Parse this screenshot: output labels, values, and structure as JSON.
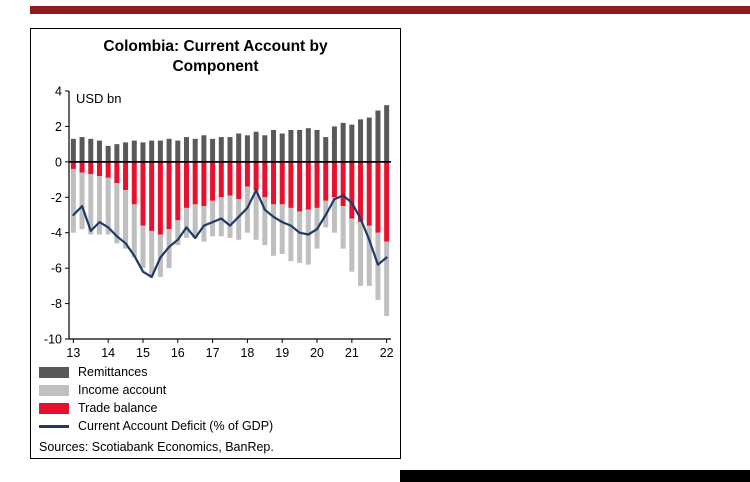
{
  "colors": {
    "top_rule": "#8E1A1C",
    "bottom_bar": "#000000",
    "axis": "#000000",
    "remittances": "#595959",
    "income_account": "#BFBFBF",
    "trade_balance": "#E8112D",
    "deficit_line": "#1F3A68"
  },
  "footer": {
    "sources": "Sources: Scotiabank Economics, BanRep."
  },
  "chart_data": {
    "type": "bar",
    "title": "Colombia: Current Account by Component",
    "unit_label": "USD bn",
    "ylabel": "USD bn",
    "xlabel": "",
    "ylim": [
      -10,
      4
    ],
    "yticks": [
      4,
      2,
      0,
      -2,
      -4,
      -6,
      -8,
      -10
    ],
    "x_tick_labels": [
      "13",
      "14",
      "15",
      "16",
      "17",
      "18",
      "19",
      "20",
      "21",
      "22"
    ],
    "x": [
      "13Q1",
      "13Q2",
      "13Q3",
      "13Q4",
      "14Q1",
      "14Q2",
      "14Q3",
      "14Q4",
      "15Q1",
      "15Q2",
      "15Q3",
      "15Q4",
      "16Q1",
      "16Q2",
      "16Q3",
      "16Q4",
      "17Q1",
      "17Q2",
      "17Q3",
      "17Q4",
      "18Q1",
      "18Q2",
      "18Q3",
      "18Q4",
      "19Q1",
      "19Q2",
      "19Q3",
      "19Q4",
      "20Q1",
      "20Q2",
      "20Q3",
      "20Q4",
      "21Q1",
      "21Q2",
      "21Q3",
      "21Q4",
      "22Q1"
    ],
    "legend_position": "bottom-left",
    "grid": false,
    "series": [
      {
        "name": "Remittances",
        "type": "bar",
        "stack": "positive",
        "color": "#595959",
        "values": [
          1.3,
          1.4,
          1.3,
          1.2,
          0.9,
          1.0,
          1.1,
          1.2,
          1.1,
          1.2,
          1.2,
          1.3,
          1.2,
          1.4,
          1.3,
          1.5,
          1.3,
          1.4,
          1.4,
          1.6,
          1.5,
          1.7,
          1.5,
          1.8,
          1.6,
          1.8,
          1.8,
          1.9,
          1.8,
          1.4,
          2.0,
          2.2,
          2.1,
          2.4,
          2.5,
          2.9,
          3.2
        ]
      },
      {
        "name": "Income account",
        "type": "bar",
        "stack": "negative-outer",
        "color": "#BFBFBF",
        "values": [
          -3.6,
          -3.2,
          -3.4,
          -3.3,
          -3.2,
          -3.4,
          -3.3,
          -3.0,
          -2.4,
          -2.5,
          -2.4,
          -2.2,
          -1.4,
          -1.7,
          -1.9,
          -2.0,
          -2.0,
          -2.2,
          -2.4,
          -2.3,
          -2.6,
          -2.8,
          -2.7,
          -2.9,
          -2.8,
          -3.0,
          -2.9,
          -3.1,
          -2.3,
          -1.5,
          -2.0,
          -2.4,
          -3.0,
          -3.6,
          -3.4,
          -3.8,
          -4.2
        ]
      },
      {
        "name": "Trade balance",
        "type": "bar",
        "stack": "negative-inner",
        "color": "#E8112D",
        "values": [
          -0.4,
          -0.6,
          -0.7,
          -0.8,
          -0.9,
          -1.2,
          -1.6,
          -2.4,
          -3.6,
          -3.9,
          -4.1,
          -3.8,
          -3.3,
          -2.6,
          -2.4,
          -2.5,
          -2.2,
          -2.0,
          -1.9,
          -2.1,
          -1.4,
          -1.6,
          -2.0,
          -2.4,
          -2.4,
          -2.6,
          -2.8,
          -2.7,
          -2.6,
          -2.2,
          -2.0,
          -2.5,
          -3.2,
          -3.4,
          -3.6,
          -4.0,
          -4.5
        ]
      },
      {
        "name": "Current Account Deficit (% of GDP)",
        "type": "line",
        "color": "#1F3A68",
        "values": [
          -3.0,
          -2.5,
          -3.9,
          -3.4,
          -3.7,
          -4.2,
          -4.6,
          -5.3,
          -6.2,
          -6.5,
          -5.4,
          -4.8,
          -4.4,
          -3.7,
          -4.3,
          -3.6,
          -3.4,
          -3.2,
          -3.6,
          -3.1,
          -2.6,
          -1.6,
          -2.7,
          -3.1,
          -3.4,
          -3.6,
          -4.0,
          -4.1,
          -3.8,
          -3.0,
          -2.1,
          -1.9,
          -2.3,
          -3.2,
          -4.4,
          -5.8,
          -5.4
        ]
      }
    ]
  }
}
